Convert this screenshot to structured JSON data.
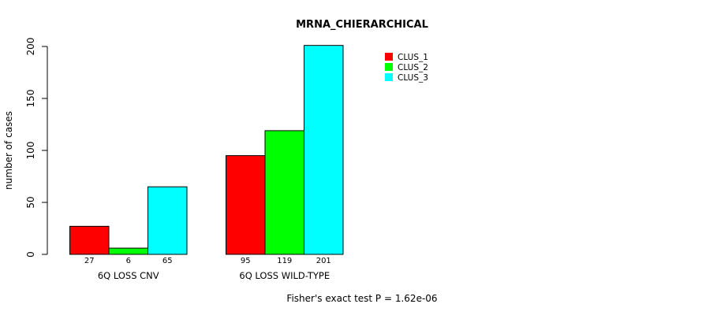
{
  "chart_data": {
    "type": "bar",
    "title": "MRNA_CHIERARCHICAL",
    "ylabel": "number of cases",
    "xlabel": "",
    "ylim": [
      0,
      200
    ],
    "yticks": [
      0,
      50,
      100,
      150,
      200
    ],
    "categories": [
      "6Q LOSS CNV",
      "6Q LOSS WILD-TYPE"
    ],
    "series": [
      {
        "name": "CLUS_1",
        "color": "#ff0000",
        "values": [
          27,
          95
        ]
      },
      {
        "name": "CLUS_2",
        "color": "#00ff00",
        "values": [
          6,
          119
        ]
      },
      {
        "name": "CLUS_3",
        "color": "#00ffff",
        "values": [
          65,
          201
        ]
      }
    ],
    "value_labels": [
      [
        "27",
        "6",
        "65"
      ],
      [
        "95",
        "119",
        "201"
      ]
    ],
    "legend_position": "top-right",
    "footnote": "Fisher's exact test P = 1.62e-06"
  }
}
